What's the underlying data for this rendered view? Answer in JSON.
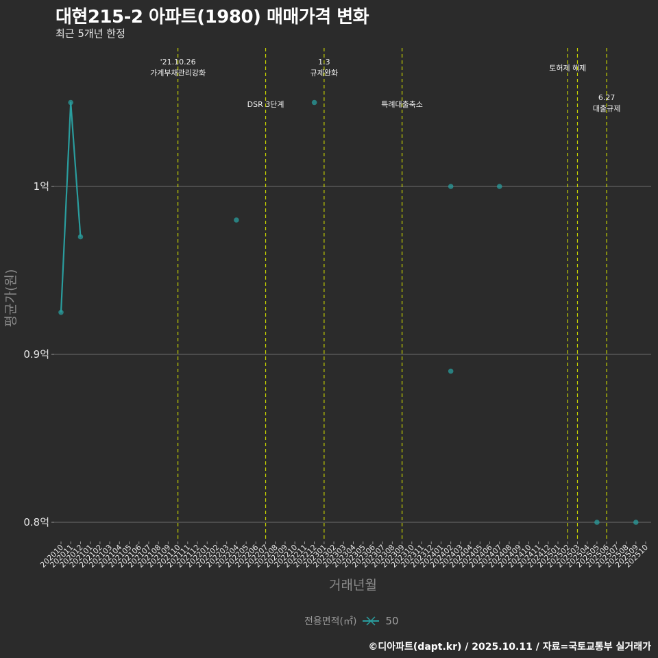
{
  "header": {
    "title": "대현215-2 아파트(1980) 매매가격 변화",
    "subtitle": "최근 5개년 한정"
  },
  "legend": {
    "title": "전용면적(㎡)",
    "items": [
      {
        "label": "50",
        "color": "#2a9d9e"
      }
    ]
  },
  "caption": "©디아파트(dapt.kr) / 2025.10.11 / 자료=국토교통부 실거래가",
  "colors": {
    "background": "#2b2b2b",
    "grid": "#6e6e6e",
    "series": "#2a9d9e",
    "event_line": "#c8d400",
    "text": "#e6e6e6",
    "axis_title": "#8a8a8a"
  },
  "chart_data": {
    "type": "line",
    "title": "대현215-2 아파트(1980) 매매가격 변화",
    "subtitle": "최근 5개년 한정",
    "xlabel": "거래년월",
    "ylabel": "평균가(원)",
    "ylim": [
      0.78,
      1.08
    ],
    "y_ticks": [
      {
        "value": 0.8,
        "label": "0.8억"
      },
      {
        "value": 0.9,
        "label": "0.9억"
      },
      {
        "value": 1.0,
        "label": "1억"
      }
    ],
    "x_ticks": [
      "202010",
      "202011",
      "202012",
      "202101",
      "202102",
      "202103",
      "202104",
      "202105",
      "202106",
      "202107",
      "202108",
      "202109",
      "202110",
      "202111",
      "202112",
      "202201",
      "202202",
      "202203",
      "202204",
      "202205",
      "202206",
      "202207",
      "202208",
      "202209",
      "202210",
      "202211",
      "202212",
      "202301",
      "202302",
      "202303",
      "202304",
      "202305",
      "202306",
      "202307",
      "202308",
      "202309",
      "202310",
      "202311",
      "202312",
      "202401",
      "202402",
      "202403",
      "202404",
      "202405",
      "202406",
      "202407",
      "202408",
      "202409",
      "202410",
      "202411",
      "202412",
      "202501",
      "202502",
      "202503",
      "202504",
      "202505",
      "202506",
      "202507",
      "202508",
      "202509",
      "202510"
    ],
    "grid": true,
    "legend_position": "bottom",
    "series": [
      {
        "name": "50",
        "unit": "억",
        "line_segments": [
          [
            {
              "x": "202010",
              "y": 0.925
            },
            {
              "x": "202011",
              "y": 1.05
            },
            {
              "x": "202012",
              "y": 0.97
            }
          ]
        ],
        "points": [
          {
            "x": "202010",
            "y": 0.925
          },
          {
            "x": "202011",
            "y": 1.05
          },
          {
            "x": "202012",
            "y": 0.97
          },
          {
            "x": "202204",
            "y": 0.98
          },
          {
            "x": "202212",
            "y": 1.05
          },
          {
            "x": "202402",
            "y": 1.0
          },
          {
            "x": "202402",
            "y": 0.89
          },
          {
            "x": "202407",
            "y": 1.0
          },
          {
            "x": "202505",
            "y": 0.8
          },
          {
            "x": "202509",
            "y": 0.8
          }
        ]
      }
    ],
    "events": [
      {
        "x": "202110",
        "lines": [
          "'21.10.26",
          "가계부채관리강화"
        ],
        "label_y": [
          94,
          110
        ]
      },
      {
        "x": "202207",
        "lines": [
          "DSR 3단계"
        ],
        "label_y": [
          156
        ]
      },
      {
        "x": "202301",
        "lines": [
          "1.3",
          "규제완화"
        ],
        "label_y": [
          94,
          110
        ]
      },
      {
        "x": "202309",
        "lines": [
          "특례대출축소"
        ],
        "label_y": [
          156
        ]
      },
      {
        "x": "202502",
        "lines": [
          "토허제 해제"
        ],
        "label_y": [
          103
        ],
        "label_offset": 0
      },
      {
        "x": "202503",
        "lines": [],
        "label_y": []
      },
      {
        "x": "202506",
        "lines": [
          "6.27",
          "대출규제"
        ],
        "label_y": [
          146,
          162
        ]
      }
    ]
  }
}
